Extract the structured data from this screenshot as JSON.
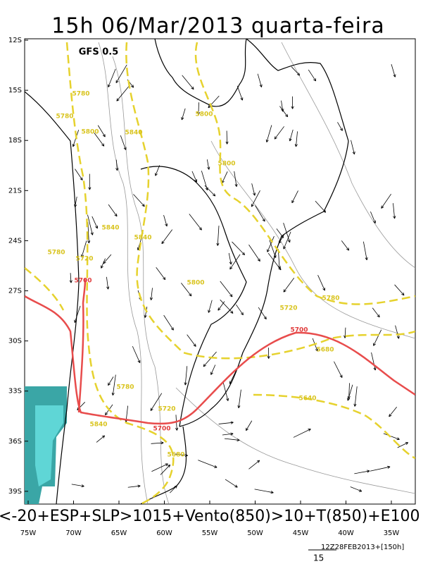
{
  "header": {
    "title": "15h 06/Mar/2013 quarta-feira"
  },
  "map": {
    "model": "GFS 0.5",
    "lat_labels": [
      "12S",
      "15S",
      "18S",
      "21S",
      "24S",
      "27S",
      "30S",
      "33S",
      "36S",
      "39S"
    ],
    "lon_labels": [
      "75W",
      "70W",
      "65W",
      "60W",
      "55W",
      "50W",
      "45W",
      "40W",
      "35W"
    ],
    "yellow_contour_labels": [
      5780,
      5780,
      5800,
      5840,
      5800,
      5800,
      5840,
      5840,
      5780,
      5720,
      5800,
      5720,
      5780,
      5680,
      5780,
      5720,
      5840,
      5680,
      5640
    ],
    "red_contour_labels": [
      5700,
      5700,
      5700
    ]
  },
  "caption": "<-20+ESP+SLP>1015+Vento(850)>10+T(850)+E100",
  "footer": {
    "run": "12Z28FEB2013+[150h]",
    "scale": "15"
  }
}
